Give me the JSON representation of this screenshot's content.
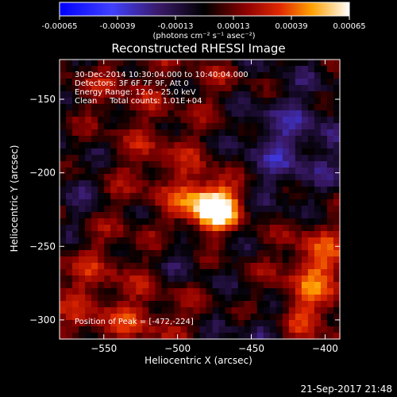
{
  "chart_data": {
    "type": "heatmap",
    "title": "Reconstructed RHESSI Image",
    "xlabel": "Heliocentric X (arcsec)",
    "ylabel": "Heliocentric Y (arcsec)",
    "xlim": [
      -580,
      -390
    ],
    "ylim": [
      -313,
      -123
    ],
    "x_ticks": [
      -550,
      -500,
      -450,
      -400
    ],
    "y_ticks": [
      -150,
      -200,
      -250,
      -300
    ],
    "grid": false,
    "colorbar": {
      "ticks": [
        "-0.00065",
        "-0.00039",
        "-0.00013",
        "0.00013",
        "0.00039",
        "0.00065"
      ],
      "min": -0.00065,
      "max": 0.00065,
      "unit_label": "(photons cm⁻² s⁻¹ asec⁻²)",
      "location": "top"
    },
    "annotations": [
      "30-Dec-2014 10:30:04.000 to 10:40:04.000",
      "Detectors: 3F 6F 7F 9F, Att 0",
      "Energy Range: 12.0 - 25.0 keV",
      "Clean     Total counts: 1.01E+04"
    ],
    "peak_label": "Position of Peak = [-472,-224]",
    "peak_position": [
      -472,
      -224
    ],
    "hotspots": [
      {
        "x": -478,
        "y": -222,
        "sx": 14,
        "sy": 12,
        "amp": 0.00068
      },
      {
        "x": -470,
        "y": -228,
        "sx": 9,
        "sy": 8,
        "amp": 0.00012
      },
      {
        "x": -405,
        "y": -265,
        "sx": 18,
        "sy": 22,
        "amp": 0.00034
      },
      {
        "x": -415,
        "y": -300,
        "sx": 14,
        "sy": 10,
        "amp": 0.00022
      },
      {
        "x": -560,
        "y": -270,
        "sx": 30,
        "sy": 35,
        "amp": 0.00018
      },
      {
        "x": -510,
        "y": -190,
        "sx": 25,
        "sy": 20,
        "amp": 0.00016
      },
      {
        "x": -540,
        "y": -140,
        "sx": 25,
        "sy": 18,
        "amp": 0.00014
      },
      {
        "x": -470,
        "y": -140,
        "sx": 20,
        "sy": 15,
        "amp": 0.0001
      },
      {
        "x": -520,
        "y": -300,
        "sx": 25,
        "sy": 10,
        "amp": 0.00016
      }
    ],
    "coldspots": [
      {
        "x": -425,
        "y": -180,
        "sx": 25,
        "sy": 30,
        "amp": -0.00022
      },
      {
        "x": -570,
        "y": -220,
        "sx": 15,
        "sy": 25,
        "amp": -0.00015
      },
      {
        "x": -440,
        "y": -305,
        "sx": 20,
        "sy": 10,
        "amp": -0.00014
      },
      {
        "x": -500,
        "y": -255,
        "sx": 12,
        "sy": 10,
        "amp": -0.0001
      }
    ]
  },
  "footer": {
    "date": "21-Sep-2017 21:48"
  }
}
